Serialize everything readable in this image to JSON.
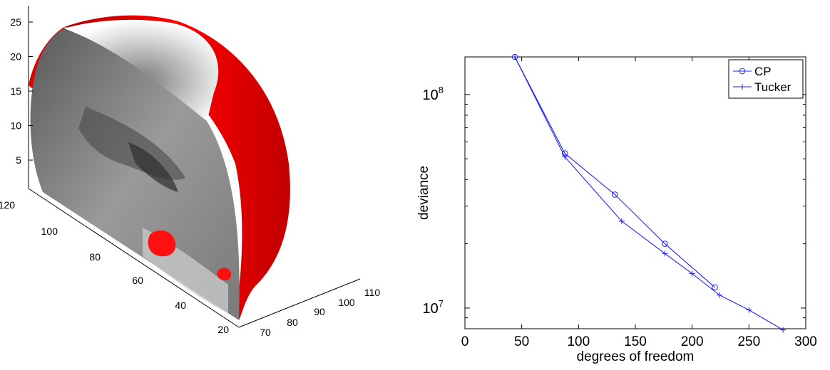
{
  "chart_data": [
    {
      "type": "other",
      "description_note": "",
      "z_ticks": [
        "5",
        "10",
        "15",
        "20",
        "25"
      ],
      "y_ticks": [
        "20",
        "40",
        "60",
        "80",
        "100",
        "120"
      ],
      "x_ticks": [
        "70",
        "80",
        "90",
        "100",
        "110"
      ],
      "colors": {
        "surface": "#ff0000",
        "slice": "#8c8c8c"
      }
    },
    {
      "type": "line",
      "xlabel": "degrees of freedom",
      "ylabel": "deviance",
      "xlim": [
        0,
        300
      ],
      "ylim": [
        8000000,
        150000000
      ],
      "yscale": "log",
      "x_ticks": [
        "0",
        "50",
        "100",
        "150",
        "200",
        "250",
        "300"
      ],
      "y_ticks": [
        {
          "base": "10",
          "exp": "7",
          "value": 10000000
        },
        {
          "base": "10",
          "exp": "8",
          "value": 100000000
        }
      ],
      "legend": {
        "position": "top-right"
      },
      "series": [
        {
          "name": "CP",
          "marker": "o",
          "color": "#2222ee",
          "x": [
            44,
            88,
            132,
            176,
            220
          ],
          "y": [
            150000000,
            53000000,
            34000000,
            20000000,
            12500000
          ]
        },
        {
          "name": "Tucker",
          "marker": "+",
          "color": "#2222ee",
          "x": [
            44,
            88,
            138,
            176,
            200,
            224,
            250,
            280
          ],
          "y": [
            150000000,
            51000000,
            25500000,
            18000000,
            14500000,
            11500000,
            9800000,
            7900000
          ]
        }
      ]
    }
  ]
}
